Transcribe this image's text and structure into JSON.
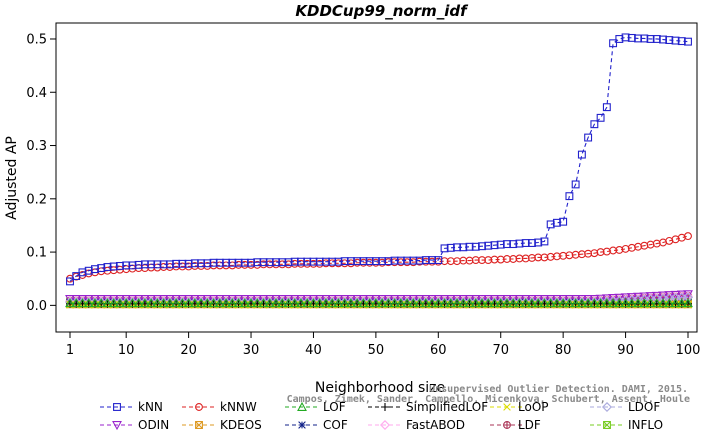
{
  "chart_data": {
    "type": "line",
    "title": "KDDCup99_norm_idf",
    "xlabel": "Neighborhood size",
    "ylabel": "Adjusted AP",
    "xlim": [
      1,
      100
    ],
    "ylim": [
      -0.05,
      0.53
    ],
    "xticks": [
      1,
      10,
      20,
      30,
      40,
      50,
      60,
      70,
      80,
      90,
      100
    ],
    "yticks": [
      0.0,
      0.1,
      0.2,
      0.3,
      0.4,
      0.5
    ],
    "ytick_labels": [
      "0.0",
      "0.1",
      "0.2",
      "0.3",
      "0.4",
      "0.5"
    ],
    "grid": false,
    "legend_position": "bottom",
    "watermark": [
      "Unsupervised Outlier Detection. DAMI, 2015.",
      "Campos, Zimek, Sander, Campello, Micenkova, Schubert, Assent, Houle"
    ],
    "x": [
      1,
      2,
      3,
      4,
      5,
      6,
      7,
      8,
      9,
      10,
      11,
      12,
      13,
      14,
      15,
      16,
      17,
      18,
      19,
      20,
      21,
      22,
      23,
      24,
      25,
      26,
      27,
      28,
      29,
      30,
      31,
      32,
      33,
      34,
      35,
      36,
      37,
      38,
      39,
      40,
      41,
      42,
      43,
      44,
      45,
      46,
      47,
      48,
      49,
      50,
      51,
      52,
      53,
      54,
      55,
      56,
      57,
      58,
      59,
      60,
      61,
      62,
      63,
      64,
      65,
      66,
      67,
      68,
      69,
      70,
      71,
      72,
      73,
      74,
      75,
      76,
      77,
      78,
      79,
      80,
      81,
      82,
      83,
      84,
      85,
      86,
      87,
      88,
      89,
      90,
      91,
      92,
      93,
      94,
      95,
      96,
      97,
      98,
      99,
      100
    ],
    "series": [
      {
        "name": "kNN",
        "color": "#2222cc",
        "marker": "square",
        "dash": "4,3",
        "values": [
          0.045,
          0.055,
          0.062,
          0.065,
          0.068,
          0.07,
          0.072,
          0.073,
          0.074,
          0.075,
          0.075,
          0.076,
          0.077,
          0.077,
          0.077,
          0.077,
          0.077,
          0.078,
          0.078,
          0.078,
          0.079,
          0.079,
          0.079,
          0.08,
          0.08,
          0.08,
          0.08,
          0.08,
          0.08,
          0.08,
          0.081,
          0.081,
          0.081,
          0.081,
          0.081,
          0.081,
          0.082,
          0.082,
          0.082,
          0.082,
          0.082,
          0.082,
          0.082,
          0.082,
          0.083,
          0.083,
          0.083,
          0.083,
          0.083,
          0.083,
          0.083,
          0.083,
          0.084,
          0.084,
          0.084,
          0.084,
          0.084,
          0.085,
          0.085,
          0.085,
          0.107,
          0.108,
          0.109,
          0.109,
          0.11,
          0.11,
          0.111,
          0.112,
          0.113,
          0.114,
          0.115,
          0.115,
          0.116,
          0.117,
          0.117,
          0.118,
          0.12,
          0.152,
          0.155,
          0.157,
          0.205,
          0.227,
          0.283,
          0.315,
          0.34,
          0.352,
          0.372,
          0.492,
          0.5,
          0.503,
          0.502,
          0.501,
          0.501,
          0.5,
          0.5,
          0.499,
          0.498,
          0.497,
          0.496,
          0.495
        ]
      },
      {
        "name": "kNNW",
        "color": "#dd2222",
        "marker": "circle",
        "dash": "4,3",
        "values": [
          0.05,
          0.054,
          0.057,
          0.06,
          0.062,
          0.064,
          0.065,
          0.066,
          0.067,
          0.068,
          0.069,
          0.07,
          0.07,
          0.071,
          0.071,
          0.072,
          0.072,
          0.073,
          0.073,
          0.073,
          0.074,
          0.074,
          0.074,
          0.075,
          0.075,
          0.075,
          0.075,
          0.076,
          0.076,
          0.076,
          0.076,
          0.077,
          0.077,
          0.077,
          0.077,
          0.077,
          0.078,
          0.078,
          0.078,
          0.078,
          0.078,
          0.079,
          0.079,
          0.079,
          0.079,
          0.079,
          0.08,
          0.08,
          0.08,
          0.08,
          0.08,
          0.081,
          0.081,
          0.081,
          0.081,
          0.081,
          0.082,
          0.082,
          0.082,
          0.082,
          0.083,
          0.083,
          0.083,
          0.084,
          0.084,
          0.085,
          0.085,
          0.085,
          0.086,
          0.086,
          0.087,
          0.087,
          0.088,
          0.088,
          0.089,
          0.09,
          0.09,
          0.091,
          0.092,
          0.093,
          0.094,
          0.095,
          0.096,
          0.097,
          0.098,
          0.1,
          0.101,
          0.103,
          0.104,
          0.106,
          0.108,
          0.11,
          0.112,
          0.114,
          0.116,
          0.118,
          0.121,
          0.124,
          0.127,
          0.13
        ]
      },
      {
        "name": "LOF",
        "color": "#22aa22",
        "marker": "triangle-up",
        "dash": "4,3",
        "flat": 0.004
      },
      {
        "name": "SimplifiedLOF",
        "color": "#000000",
        "marker": "plus",
        "dash": "4,3",
        "flat": 0.003
      },
      {
        "name": "LoOP",
        "color": "#dddd00",
        "marker": "x",
        "dash": "4,3",
        "flat": 0.001
      },
      {
        "name": "LDOF",
        "color": "#aaaadd",
        "marker": "diamond",
        "dash": "4,3",
        "flat": 0.006
      },
      {
        "name": "ODIN",
        "color": "#9922cc",
        "marker": "triangle-down",
        "dash": "4,3",
        "flat": 0.012
      },
      {
        "name": "KDEOS",
        "color": "#dd9922",
        "marker": "square-x",
        "dash": "4,3",
        "flat": 0.002
      },
      {
        "name": "COF",
        "color": "#112288",
        "marker": "asterisk",
        "dash": "4,3",
        "flat": 0.005
      },
      {
        "name": "FastABOD",
        "color": "#ffaaee",
        "marker": "diamond",
        "dash": "4,3",
        "flat": 0.008
      },
      {
        "name": "LDF",
        "color": "#aa3355",
        "marker": "circle-plus",
        "dash": "4,3",
        "flat": 0.009
      },
      {
        "name": "INFLO",
        "color": "#77cc22",
        "marker": "square-x",
        "dash": "4,3",
        "flat": 0.007
      }
    ]
  }
}
